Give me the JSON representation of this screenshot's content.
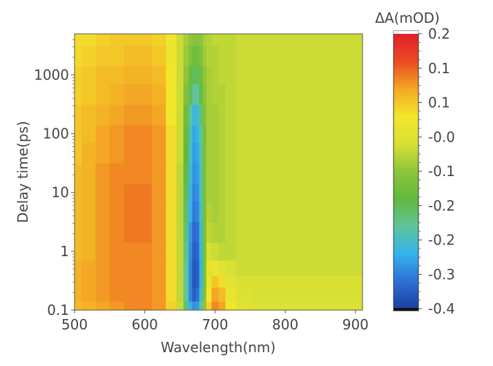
{
  "chart_data": {
    "type": "heatmap",
    "xlabel": "Wavelength(nm)",
    "ylabel": "Delay time(ps)",
    "colorbar_label": "ΔA(mOD)",
    "x_scale": "linear",
    "y_scale": "log",
    "xlim": [
      500,
      910
    ],
    "ylim": [
      0.1,
      5000
    ],
    "x_ticks": [
      500,
      600,
      700,
      800,
      900
    ],
    "x_tick_labels": [
      "500",
      "600",
      "700",
      "800",
      "900"
    ],
    "y_ticks": [
      0.1,
      1,
      10,
      100,
      1000
    ],
    "y_tick_labels": [
      "0.1",
      "1",
      "10",
      "100",
      "1000"
    ],
    "colorbar_tick_labels": [
      "0.2",
      "0.1",
      "0.1",
      "-0.0",
      "-0.1",
      "-0.2",
      "-0.2",
      "-0.3",
      "-0.4"
    ],
    "colorbar_range": [
      -0.4,
      0.2
    ],
    "colorscale": [
      "#1a3fa0",
      "#2f6fd6",
      "#33b4ec",
      "#5fc49a",
      "#62b83e",
      "#8fc53a",
      "#d8e034",
      "#f2e62c",
      "#f4a724",
      "#ea4a22",
      "#e0202a"
    ],
    "wavelengths": [
      500,
      520,
      540,
      560,
      580,
      600,
      620,
      640,
      650,
      660,
      665,
      670,
      675,
      680,
      685,
      690,
      700,
      710,
      720,
      740,
      760,
      800,
      850,
      910
    ],
    "delays": [
      0.1,
      0.2,
      0.3,
      0.5,
      1,
      2,
      5,
      10,
      20,
      50,
      100,
      200,
      500,
      1000,
      2000,
      5000
    ],
    "dA": [
      [
        0.06,
        0.07,
        0.08,
        0.09,
        0.1,
        0.1,
        0.09,
        0.04,
        -0.05,
        -0.2,
        -0.28,
        -0.31,
        -0.3,
        -0.22,
        -0.1,
        0.04,
        0.1,
        0.08,
        0.02,
        -0.02,
        -0.03,
        -0.03,
        -0.03,
        -0.03
      ],
      [
        0.07,
        0.08,
        0.09,
        0.1,
        0.1,
        0.1,
        0.09,
        0.03,
        -0.06,
        -0.22,
        -0.32,
        -0.36,
        -0.34,
        -0.26,
        -0.12,
        0.02,
        0.08,
        0.06,
        0.0,
        -0.03,
        -0.04,
        -0.04,
        -0.04,
        -0.04
      ],
      [
        0.07,
        0.08,
        0.09,
        0.1,
        0.1,
        0.1,
        0.09,
        0.03,
        -0.06,
        -0.22,
        -0.32,
        -0.37,
        -0.36,
        -0.28,
        -0.13,
        0.0,
        0.05,
        0.03,
        -0.02,
        -0.04,
        -0.04,
        -0.04,
        -0.04,
        -0.04
      ],
      [
        0.07,
        0.08,
        0.09,
        0.1,
        0.1,
        0.1,
        0.09,
        0.03,
        -0.06,
        -0.22,
        -0.32,
        -0.37,
        -0.36,
        -0.28,
        -0.13,
        -0.02,
        0.0,
        -0.02,
        -0.04,
        -0.05,
        -0.05,
        -0.05,
        -0.05,
        -0.05
      ],
      [
        0.06,
        0.07,
        0.09,
        0.1,
        0.1,
        0.1,
        0.09,
        0.03,
        -0.06,
        -0.21,
        -0.31,
        -0.36,
        -0.35,
        -0.27,
        -0.13,
        -0.04,
        -0.05,
        -0.06,
        -0.06,
        -0.05,
        -0.05,
        -0.05,
        -0.05,
        -0.05
      ],
      [
        0.06,
        0.07,
        0.09,
        0.1,
        0.11,
        0.11,
        0.09,
        0.03,
        -0.06,
        -0.2,
        -0.3,
        -0.35,
        -0.34,
        -0.26,
        -0.13,
        -0.06,
        -0.07,
        -0.07,
        -0.06,
        -0.05,
        -0.05,
        -0.05,
        -0.05,
        -0.05
      ],
      [
        0.06,
        0.07,
        0.09,
        0.1,
        0.11,
        0.11,
        0.09,
        0.03,
        -0.06,
        -0.19,
        -0.28,
        -0.33,
        -0.32,
        -0.25,
        -0.13,
        -0.07,
        -0.08,
        -0.07,
        -0.06,
        -0.05,
        -0.05,
        -0.05,
        -0.05,
        -0.05
      ],
      [
        0.06,
        0.07,
        0.09,
        0.1,
        0.11,
        0.11,
        0.09,
        0.03,
        -0.06,
        -0.18,
        -0.27,
        -0.32,
        -0.31,
        -0.24,
        -0.13,
        -0.08,
        -0.08,
        -0.07,
        -0.06,
        -0.05,
        -0.05,
        -0.05,
        -0.05,
        -0.05
      ],
      [
        0.06,
        0.07,
        0.09,
        0.1,
        0.1,
        0.1,
        0.09,
        0.03,
        -0.06,
        -0.17,
        -0.26,
        -0.31,
        -0.3,
        -0.24,
        -0.13,
        -0.08,
        -0.08,
        -0.07,
        -0.06,
        -0.05,
        -0.05,
        -0.05,
        -0.05,
        -0.05
      ],
      [
        0.05,
        0.07,
        0.08,
        0.09,
        0.1,
        0.1,
        0.09,
        0.03,
        -0.05,
        -0.16,
        -0.25,
        -0.3,
        -0.29,
        -0.23,
        -0.13,
        -0.08,
        -0.08,
        -0.07,
        -0.06,
        -0.05,
        -0.05,
        -0.05,
        -0.05,
        -0.05
      ],
      [
        0.05,
        0.06,
        0.08,
        0.09,
        0.1,
        0.1,
        0.09,
        0.03,
        -0.05,
        -0.15,
        -0.24,
        -0.29,
        -0.28,
        -0.22,
        -0.13,
        -0.08,
        -0.08,
        -0.07,
        -0.06,
        -0.05,
        -0.05,
        -0.05,
        -0.05,
        -0.05
      ],
      [
        0.05,
        0.06,
        0.07,
        0.08,
        0.09,
        0.09,
        0.08,
        0.02,
        -0.05,
        -0.14,
        -0.22,
        -0.27,
        -0.26,
        -0.2,
        -0.12,
        -0.08,
        -0.08,
        -0.07,
        -0.06,
        -0.05,
        -0.05,
        -0.05,
        -0.05,
        -0.05
      ],
      [
        0.04,
        0.05,
        0.06,
        0.07,
        0.08,
        0.08,
        0.07,
        0.02,
        -0.05,
        -0.12,
        -0.18,
        -0.22,
        -0.22,
        -0.17,
        -0.11,
        -0.08,
        -0.07,
        -0.07,
        -0.06,
        -0.05,
        -0.05,
        -0.05,
        -0.05,
        -0.05
      ],
      [
        0.04,
        0.05,
        0.06,
        0.06,
        0.07,
        0.07,
        0.06,
        0.02,
        -0.05,
        -0.1,
        -0.15,
        -0.18,
        -0.18,
        -0.14,
        -0.1,
        -0.08,
        -0.07,
        -0.06,
        -0.06,
        -0.05,
        -0.05,
        -0.05,
        -0.05,
        -0.05
      ],
      [
        0.03,
        0.04,
        0.05,
        0.05,
        0.06,
        0.06,
        0.05,
        0.01,
        -0.05,
        -0.09,
        -0.12,
        -0.14,
        -0.14,
        -0.12,
        -0.09,
        -0.07,
        -0.07,
        -0.06,
        -0.06,
        -0.05,
        -0.05,
        -0.05,
        -0.05,
        -0.05
      ],
      [
        0.03,
        0.03,
        0.04,
        0.05,
        0.05,
        0.05,
        0.04,
        0.01,
        -0.05,
        -0.08,
        -0.1,
        -0.11,
        -0.11,
        -0.1,
        -0.08,
        -0.07,
        -0.06,
        -0.06,
        -0.06,
        -0.05,
        -0.05,
        -0.05,
        -0.05,
        -0.05
      ]
    ]
  }
}
